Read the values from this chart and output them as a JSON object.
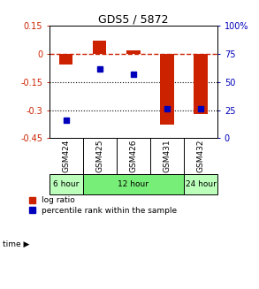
{
  "title": "GDS5 / 5872",
  "samples": [
    "GSM424",
    "GSM425",
    "GSM426",
    "GSM431",
    "GSM432"
  ],
  "log_ratio": [
    -0.055,
    0.07,
    0.02,
    -0.38,
    -0.32
  ],
  "pct_rank_right": [
    16,
    62,
    57,
    26,
    26
  ],
  "ylim_left": [
    -0.45,
    0.15
  ],
  "ylim_right": [
    0,
    100
  ],
  "left_yticks": [
    0.15,
    0.0,
    -0.15,
    -0.3,
    -0.45
  ],
  "left_ytick_labels": [
    "0.15",
    "0",
    "-0.15",
    "-0.3",
    "-0.45"
  ],
  "right_yticks": [
    100,
    75,
    50,
    25,
    0
  ],
  "right_ytick_labels": [
    "100%",
    "75",
    "50",
    "25",
    "0"
  ],
  "hline_dotted1": -0.15,
  "hline_dotted2": -0.3,
  "bar_color": "#cc2200",
  "dot_color": "#0000bb",
  "bar_width": 0.4,
  "time_groups": [
    {
      "label": "6 hour",
      "start": 0,
      "end": 1,
      "color": "#bbffbb"
    },
    {
      "label": "12 hour",
      "start": 1,
      "end": 4,
      "color": "#77ee77"
    },
    {
      "label": "24 hour",
      "start": 4,
      "end": 5,
      "color": "#bbffbb"
    }
  ],
  "legend_log_ratio": "log ratio",
  "legend_percentile": "percentile rank within the sample",
  "background_color": "#ffffff",
  "plot_bg": "#ffffff",
  "axis_color_left": "#cc2200",
  "axis_color_right": "#0000bb",
  "sample_box_color": "#cccccc"
}
